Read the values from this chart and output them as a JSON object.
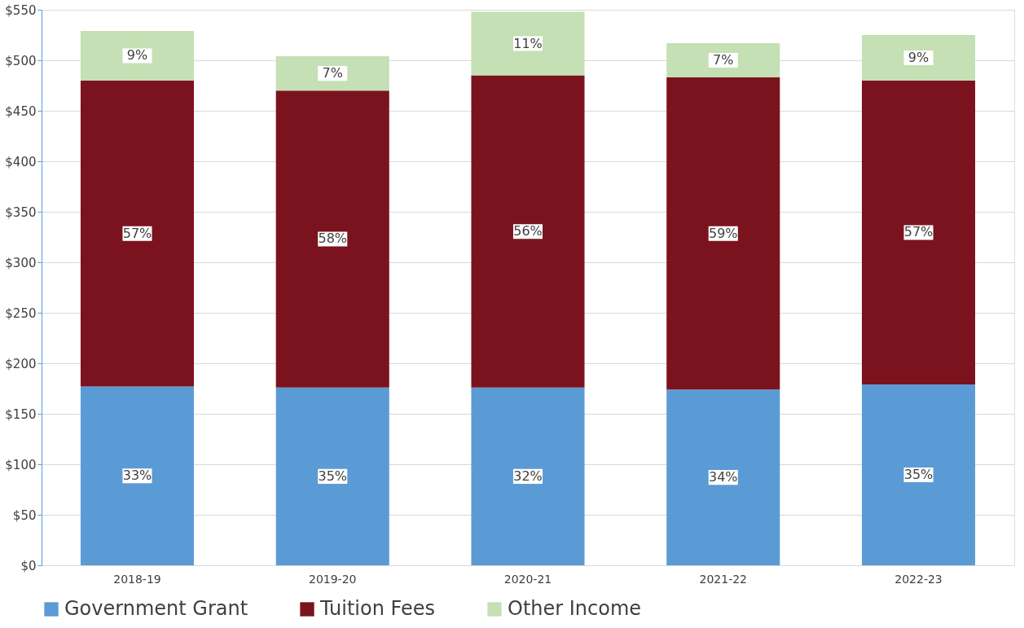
{
  "chart_data": {
    "type": "bar",
    "stacked": true,
    "categories": [
      "2018-19",
      "2019-20",
      "2020-21",
      "2021-22",
      "2022-23"
    ],
    "series": [
      {
        "name": "Government Grant",
        "color": "#5b9bd5",
        "values": [
          177,
          176,
          176,
          174,
          179
        ]
      },
      {
        "name": "Tuition Fees",
        "color": "#7b131e",
        "values": [
          303,
          294,
          309,
          309,
          301
        ]
      },
      {
        "name": "Other Income",
        "color": "#c5e0b4",
        "values": [
          49,
          34,
          63,
          34,
          45
        ]
      }
    ],
    "annotations": [
      {
        "text": "33%",
        "x": "2018-19",
        "y": 88.5
      },
      {
        "text": "35%",
        "x": "2019-20",
        "y": 88
      },
      {
        "text": "32%",
        "x": "2020-21",
        "y": 88
      },
      {
        "text": "34%",
        "x": "2021-22",
        "y": 87
      },
      {
        "text": "35%",
        "x": "2022-23",
        "y": 89.5
      },
      {
        "text": "57%",
        "x": "2018-19",
        "y": 328.5
      },
      {
        "text": "58%",
        "x": "2019-20",
        "y": 323
      },
      {
        "text": "56%",
        "x": "2020-21",
        "y": 330.5
      },
      {
        "text": "59%",
        "x": "2021-22",
        "y": 328.5
      },
      {
        "text": "57%",
        "x": "2022-23",
        "y": 329.5
      },
      {
        "text": "9%",
        "x": "2018-19",
        "y": 504.5
      },
      {
        "text": "7%",
        "x": "2019-20",
        "y": 487
      },
      {
        "text": "11%",
        "x": "2020-21",
        "y": 516.5
      },
      {
        "text": "7%",
        "x": "2021-22",
        "y": 500
      },
      {
        "text": "9%",
        "x": "2022-23",
        "y": 502.5
      }
    ],
    "ylim": [
      0,
      550
    ],
    "yticks": [
      {
        "value": 0,
        "label": "$0"
      },
      {
        "value": 50,
        "label": "$50"
      },
      {
        "value": 100,
        "label": "$100"
      },
      {
        "value": 150,
        "label": "$150"
      },
      {
        "value": 200,
        "label": "$200"
      },
      {
        "value": 250,
        "label": "$250"
      },
      {
        "value": 300,
        "label": "$300"
      },
      {
        "value": 350,
        "label": "$350"
      },
      {
        "value": 400,
        "label": "$400"
      },
      {
        "value": 450,
        "label": "$450"
      },
      {
        "value": 500,
        "label": "$500"
      },
      {
        "value": 550,
        "label": "$550"
      }
    ],
    "grid": "y",
    "legend": "bottom"
  }
}
